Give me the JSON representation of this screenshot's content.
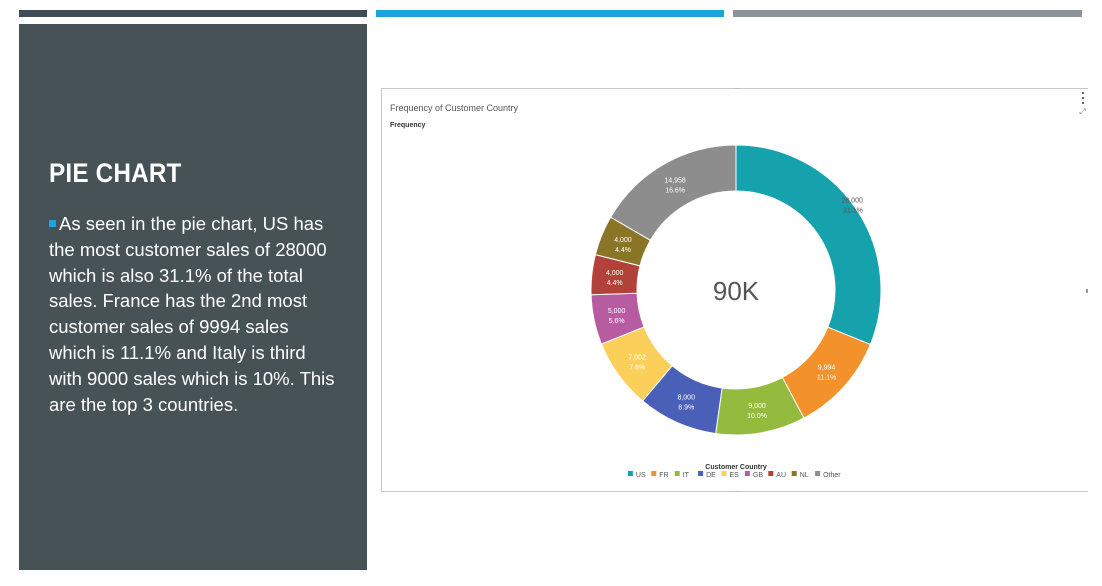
{
  "colors": {
    "bar1": "#3f4c54",
    "bar2": "#1aa6dc",
    "bar3": "#8c949b",
    "panel": "#465256",
    "bullet": "#1aa6dc",
    "text_white": "#ffffff"
  },
  "slide": {
    "title": "PIE CHART",
    "body": "As seen in the pie chart, US has the most customer sales of 28000 which is also 31.1% of the total sales. France has the 2nd most customer sales of 9994 sales which is 11.1% and Italy is third with 9000 sales which is 10%. This are the top 3 countries."
  },
  "icons": {
    "menu": "vertical-dots-icon",
    "expand": "expand-icon"
  },
  "chart_data": {
    "type": "pie",
    "title": "Frequency of Customer Country",
    "subtitle": "Frequency",
    "center_label": "90K",
    "legend_title": "Customer Country",
    "legend_position": "bottom",
    "slices": [
      {
        "category": "US",
        "value": 28000,
        "value_label": "28,000",
        "percent_label": "31.1%",
        "color": "#16a2ad"
      },
      {
        "category": "FR",
        "value": 9994,
        "value_label": "9,994",
        "percent_label": "11.1%",
        "color": "#f3922a"
      },
      {
        "category": "IT",
        "value": 9000,
        "value_label": "9,000",
        "percent_label": "10.0%",
        "color": "#94bb3d"
      },
      {
        "category": "DE",
        "value": 8000,
        "value_label": "8,000",
        "percent_label": "8.9%",
        "color": "#4a5fb8"
      },
      {
        "category": "ES",
        "value": 7002,
        "value_label": "7,002",
        "percent_label": "7.8%",
        "color": "#fccf5a"
      },
      {
        "category": "GB",
        "value": 5000,
        "value_label": "5,000",
        "percent_label": "5.6%",
        "color": "#b85ca1"
      },
      {
        "category": "AU",
        "value": 4000,
        "value_label": "4,000",
        "percent_label": "4.4%",
        "color": "#b2413a"
      },
      {
        "category": "NL",
        "value": 4000,
        "value_label": "4,000",
        "percent_label": "4.4%",
        "color": "#8a7426"
      },
      {
        "category": "Other",
        "value": 14958,
        "value_label": "14,958",
        "percent_label": "16.6%",
        "color": "#8d8d8d"
      }
    ]
  }
}
